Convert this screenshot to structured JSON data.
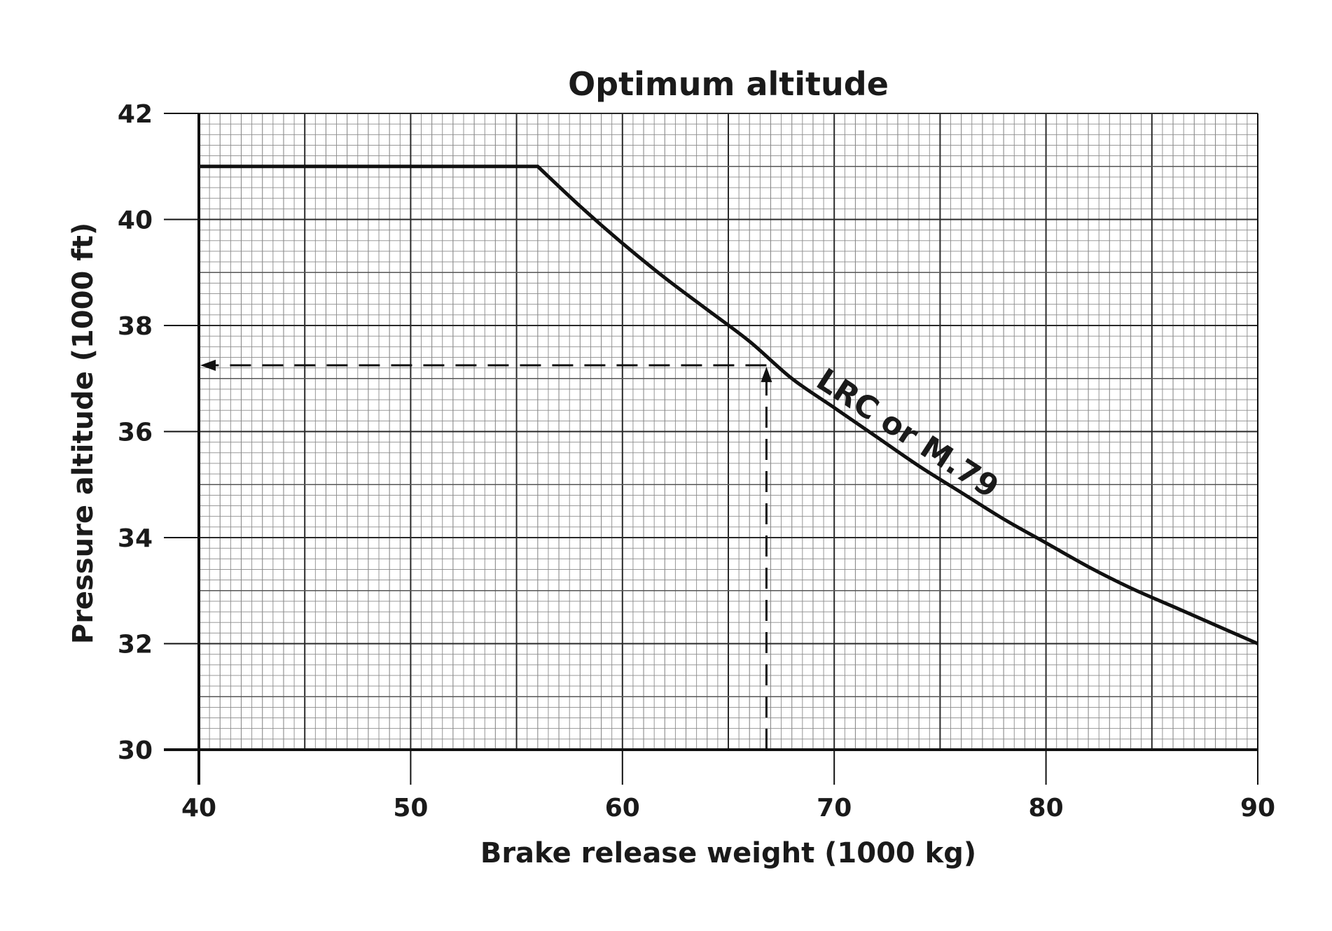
{
  "chart_data": {
    "type": "line",
    "title": "Optimum altitude",
    "xlabel": "Brake release weight (1000 kg)",
    "ylabel": "Pressure altitude (1000 ft)",
    "xlim": [
      40,
      90
    ],
    "ylim": [
      30,
      42
    ],
    "xticks": [
      "40",
      "50",
      "60",
      "70",
      "80",
      "90"
    ],
    "yticks": [
      "30",
      "32",
      "34",
      "36",
      "38",
      "40",
      "42"
    ],
    "grid": true,
    "legend": "none",
    "series": [
      {
        "name": "LRC or M.79",
        "x": [
          40,
          56,
          58,
          60,
          62,
          64,
          66,
          68,
          70,
          72,
          74,
          76,
          78,
          80,
          82,
          84,
          86,
          88,
          90
        ],
        "y": [
          41.0,
          41.0,
          40.25,
          39.55,
          38.9,
          38.3,
          37.7,
          37.0,
          36.45,
          35.9,
          35.35,
          34.85,
          34.35,
          33.9,
          33.45,
          33.05,
          32.7,
          32.35,
          32.0
        ]
      }
    ],
    "annotations": [
      {
        "text": "LRC or M.79",
        "x": 73.2,
        "y": 35.8
      }
    ],
    "reference_lines": {
      "weight": 66.8,
      "altitude": 37.25
    }
  }
}
